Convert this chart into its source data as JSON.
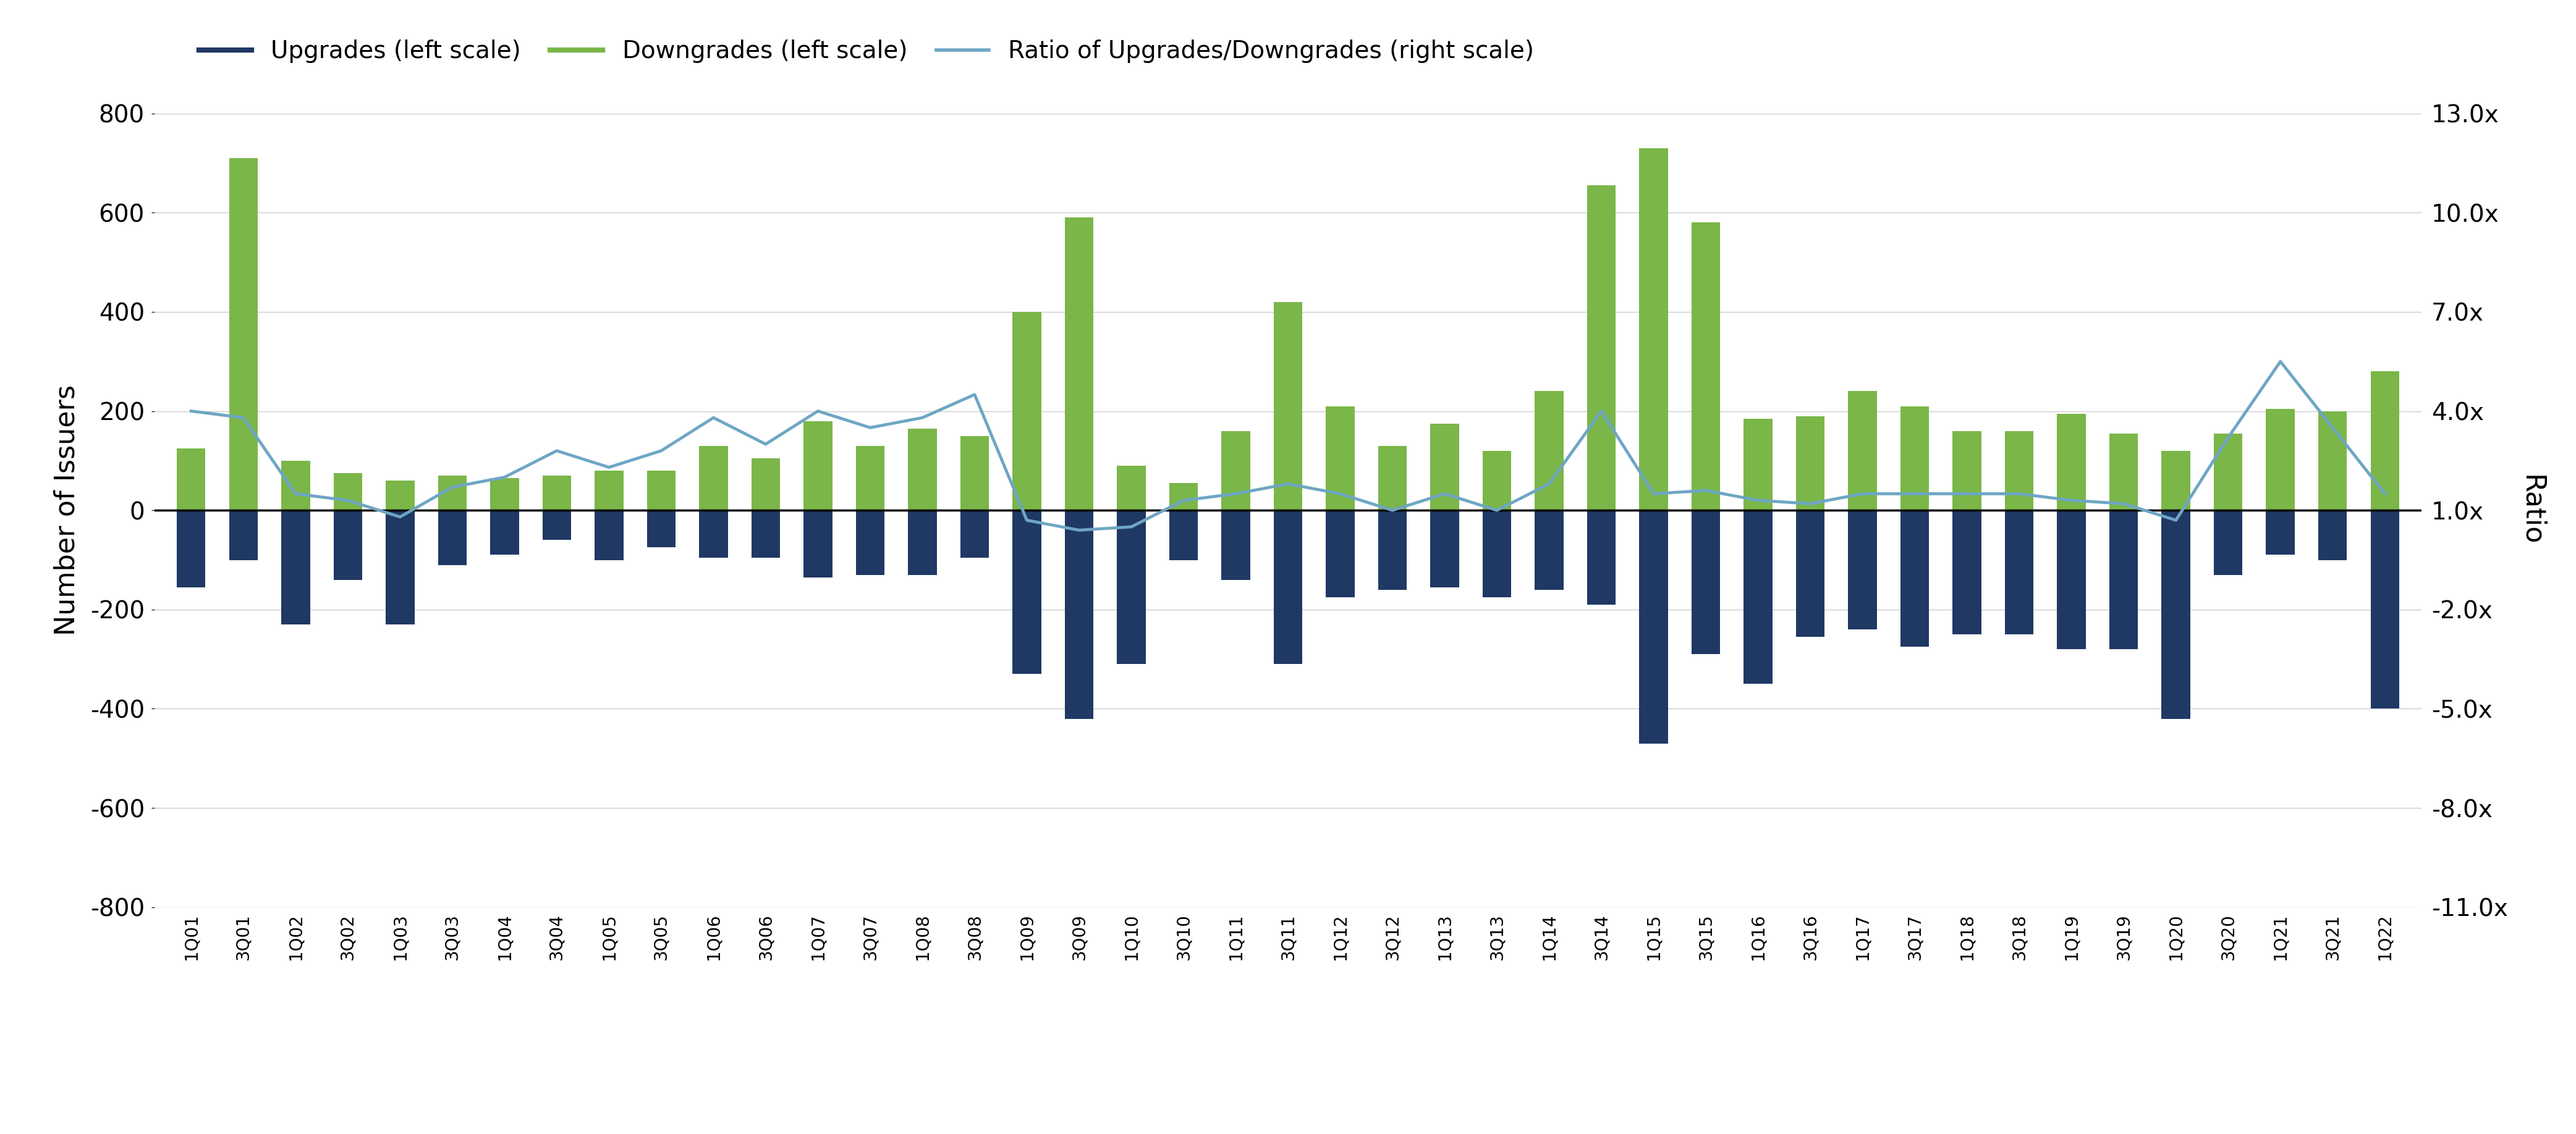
{
  "quarters": [
    "1Q01",
    "3Q01",
    "1Q02",
    "3Q02",
    "1Q03",
    "3Q03",
    "1Q04",
    "3Q04",
    "1Q05",
    "3Q05",
    "1Q06",
    "3Q06",
    "1Q07",
    "3Q07",
    "1Q08",
    "3Q08",
    "1Q09",
    "3Q09",
    "1Q10",
    "3Q10",
    "1Q11",
    "3Q11",
    "1Q12",
    "3Q12",
    "1Q13",
    "3Q13",
    "1Q14",
    "3Q14",
    "1Q15",
    "3Q15",
    "1Q16",
    "3Q16",
    "1Q17",
    "3Q17",
    "1Q18",
    "3Q18",
    "1Q19",
    "3Q19",
    "1Q20",
    "3Q20",
    "1Q21",
    "3Q21",
    "1Q22"
  ],
  "downgrades": [
    125,
    710,
    100,
    75,
    60,
    70,
    65,
    70,
    80,
    80,
    130,
    105,
    180,
    130,
    165,
    150,
    400,
    590,
    90,
    55,
    160,
    420,
    210,
    130,
    175,
    120,
    240,
    655,
    730,
    580,
    185,
    190,
    240,
    210,
    160,
    160,
    195,
    155,
    120,
    155,
    205,
    200,
    280
  ],
  "upgrades": [
    -155,
    -100,
    -230,
    -140,
    -230,
    -110,
    -90,
    -60,
    -100,
    -75,
    -95,
    -95,
    -135,
    -130,
    -130,
    -95,
    -330,
    -420,
    -310,
    -100,
    -140,
    -310,
    -175,
    -160,
    -155,
    -175,
    -160,
    -190,
    -470,
    -290,
    -350,
    -255,
    -240,
    -275,
    -250,
    -250,
    -280,
    -280,
    -420,
    -130,
    -90,
    -100,
    -400
  ],
  "ratio": [
    4.0,
    3.8,
    1.5,
    1.3,
    0.8,
    1.7,
    2.0,
    2.8,
    2.3,
    2.8,
    3.8,
    3.0,
    4.0,
    3.5,
    3.8,
    4.5,
    0.7,
    0.4,
    0.5,
    1.3,
    1.5,
    1.8,
    1.5,
    1.0,
    1.5,
    1.0,
    1.8,
    4.0,
    1.5,
    1.6,
    1.3,
    1.2,
    1.5,
    1.5,
    1.5,
    1.5,
    1.3,
    1.2,
    0.7,
    3.2,
    5.5,
    3.5,
    1.5
  ],
  "upgrade_color": "#1F3864",
  "downgrade_color": "#7AB648",
  "ratio_color": "#6EA6C4",
  "ylim_left": [
    -800,
    800
  ],
  "ylim_right": [
    -11.0,
    13.0
  ],
  "yticks_left": [
    -800,
    -600,
    -400,
    -200,
    0,
    200,
    400,
    600,
    800
  ],
  "yticks_right": [
    -11.0,
    -8.0,
    -5.0,
    -2.0,
    1.0,
    4.0,
    7.0,
    10.0,
    13.0
  ],
  "ytick_labels_right": [
    "-11.0x",
    "-8.0x",
    "-5.0x",
    "-2.0x",
    "1.0x",
    "4.0x",
    "7.0x",
    "10.0x",
    "13.0x"
  ],
  "ylabel_left": "Number of Issuers",
  "ylabel_right": "Ratio",
  "legend_labels": [
    "Upgrades (left scale)",
    "Downgrades (left scale)",
    "Ratio of Upgrades/Downgrades (right scale)"
  ],
  "background_color": "#FFFFFF",
  "grid_color": "#CCCCCC"
}
